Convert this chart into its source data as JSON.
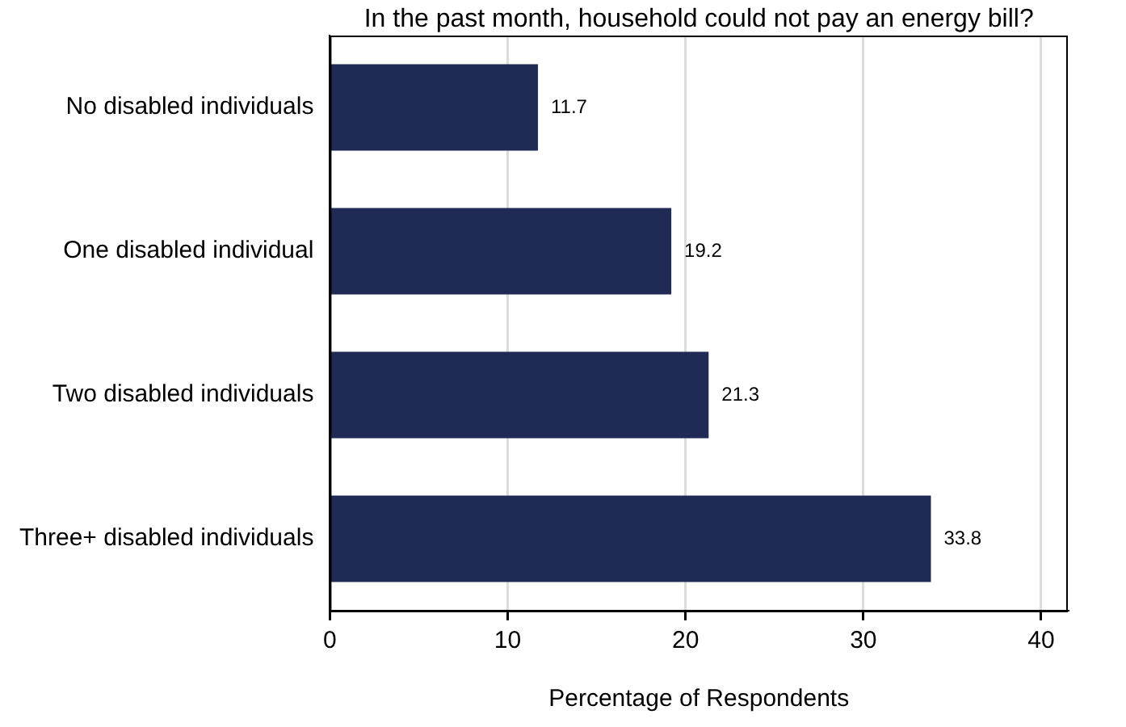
{
  "chart_data": {
    "type": "bar",
    "orientation": "horizontal",
    "title": "In the past month, household could not pay an energy bill?",
    "xlabel": "Percentage of Respondents",
    "categories": [
      "No disabled individuals",
      "One disabled individual",
      "Two disabled individuals",
      "Three+ disabled individuals"
    ],
    "values": [
      11.7,
      19.2,
      21.3,
      33.8
    ],
    "color": "#1f2a55",
    "xlim": [
      0,
      41.5
    ],
    "xticks": [
      0,
      10,
      20,
      30,
      40
    ],
    "grid": "x",
    "data_labels": true,
    "legend": false
  }
}
